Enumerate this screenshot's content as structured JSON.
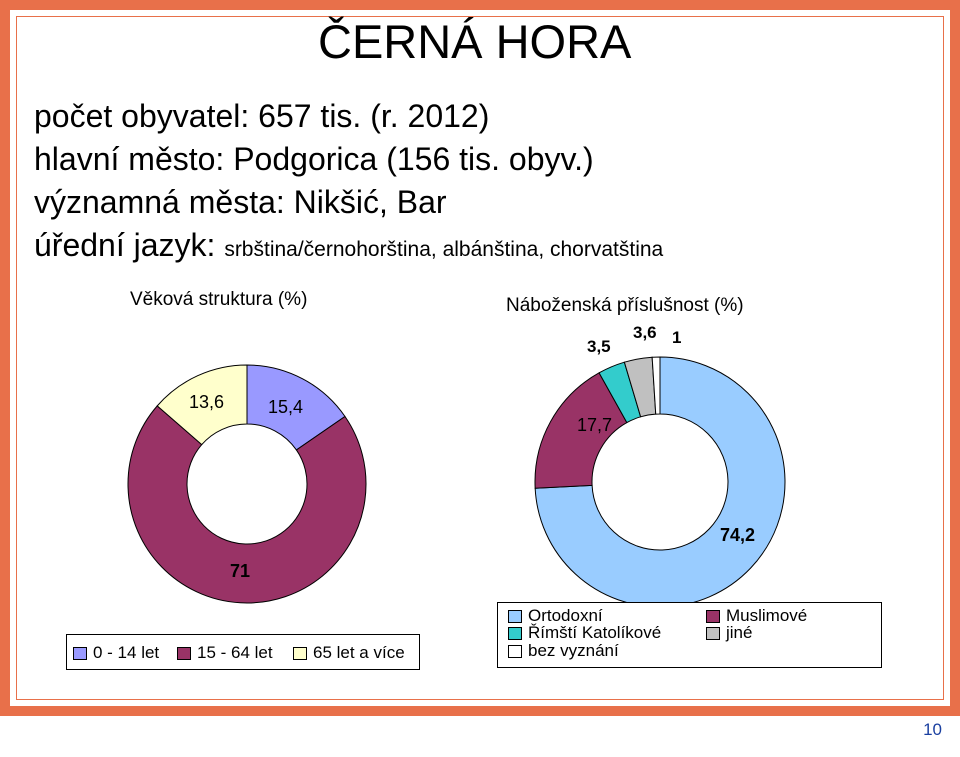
{
  "slide": {
    "title": "ČERNÁ HORA",
    "line1": "počet obyvatel: 657 tis. (r. 2012)",
    "line2": "hlavní město: Podgorica (156 tis. obyv.)",
    "line3": "významná města: Nikšić, Bar",
    "line4_label": "úřední jazyk:",
    "line4_value": "srbština/černohorština, albánština, chorvatština",
    "page_number": "10"
  },
  "colors": {
    "frame": "#e8704a",
    "blue_light": "#99ccff",
    "purple": "#993366",
    "teal": "#33cccc",
    "gray": "#c0c0c0",
    "white": "#ffffff",
    "lavender": "#9999ff",
    "cream": "#ffffcc"
  },
  "chart_data": [
    {
      "type": "pie",
      "title": "Věková struktura (%)",
      "categories": [
        "0 - 14 let",
        "15 - 64 let",
        "65 let a více"
      ],
      "values": [
        15.4,
        71,
        13.6
      ],
      "labels": [
        "15,4",
        "71",
        "13,6"
      ],
      "colors": [
        "#9999ff",
        "#993366",
        "#ffffcc"
      ],
      "legend": "bottom"
    },
    {
      "type": "pie",
      "title": "Náboženská příslušnost (%)",
      "categories": [
        "Ortodoxní",
        "Muslimové",
        "Římští Katolíkové",
        "jiné",
        "bez vyznání"
      ],
      "values": [
        74.2,
        17.7,
        3.5,
        3.6,
        1
      ],
      "labels": [
        "74,2",
        "17,7",
        "3,5",
        "3,6",
        "1"
      ],
      "colors": [
        "#99ccff",
        "#993366",
        "#33cccc",
        "#c0c0c0",
        "#ffffff"
      ],
      "legend": "bottom"
    }
  ]
}
